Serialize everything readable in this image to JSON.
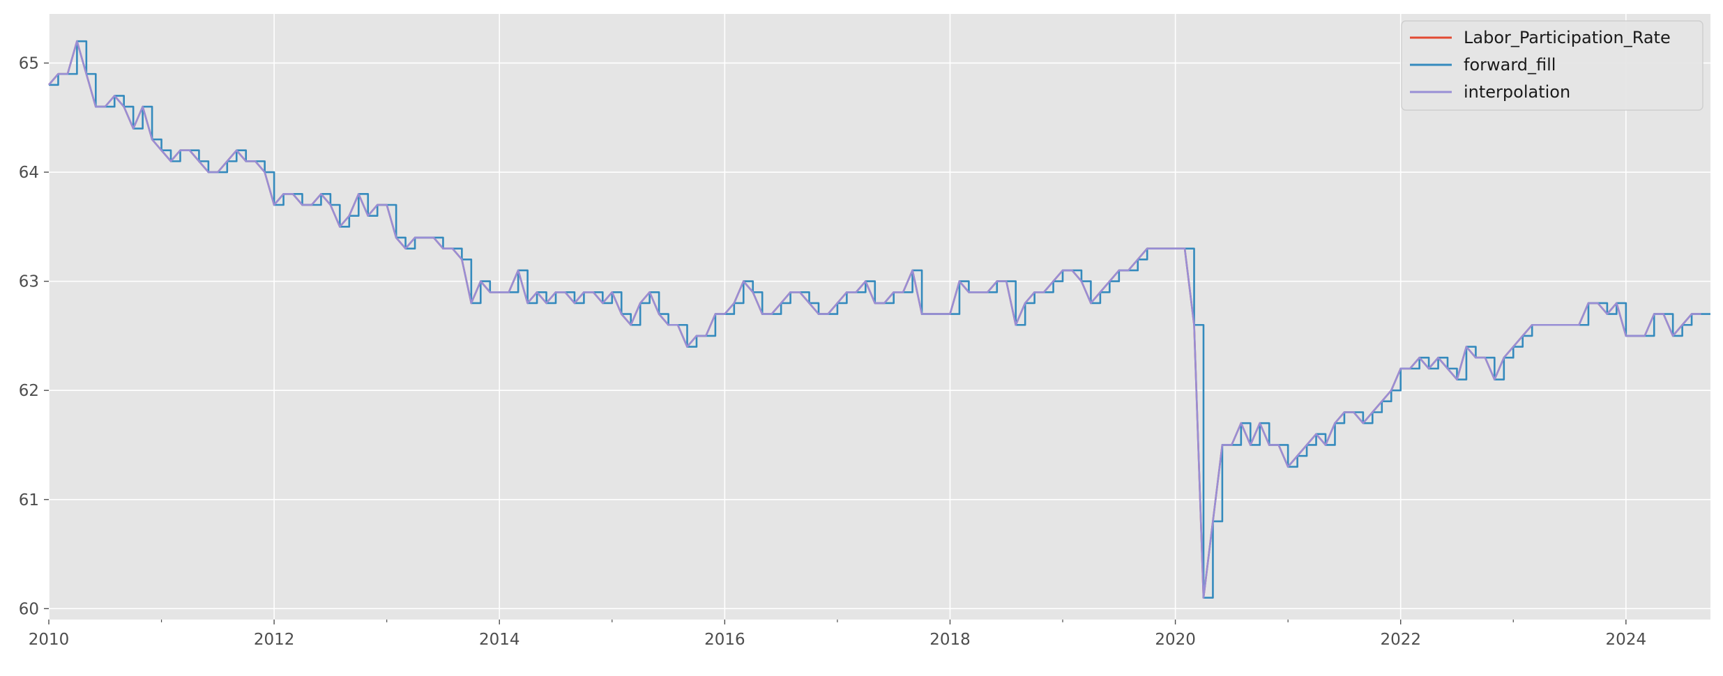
{
  "chart_data": {
    "type": "line",
    "title": "",
    "xlabel": "",
    "ylabel": "",
    "xlim": [
      2010.0,
      2024.75
    ],
    "ylim": [
      59.9,
      65.45
    ],
    "grid": true,
    "legend_position": "top-right",
    "x_major_ticks": [
      2010,
      2012,
      2014,
      2016,
      2018,
      2020,
      2022,
      2024
    ],
    "x_tick_labels": [
      "2010",
      "2012",
      "2014",
      "2016",
      "2018",
      "2020",
      "2022",
      "2024"
    ],
    "x_minor_ticks": [
      2011,
      2013,
      2015,
      2017,
      2019,
      2021,
      2023
    ],
    "y_ticks": [
      60,
      61,
      62,
      63,
      64,
      65
    ],
    "y_tick_labels": [
      "60",
      "61",
      "62",
      "63",
      "64",
      "65"
    ],
    "x_start": "2010-01",
    "x_step": "monthly",
    "values": [
      64.8,
      64.9,
      64.9,
      65.2,
      64.9,
      64.6,
      64.6,
      64.7,
      64.6,
      64.4,
      64.6,
      64.3,
      64.2,
      64.1,
      64.2,
      64.2,
      64.1,
      64.0,
      64.0,
      64.1,
      64.2,
      64.1,
      64.1,
      64.0,
      63.7,
      63.8,
      63.8,
      63.7,
      63.7,
      63.8,
      63.7,
      63.5,
      63.6,
      63.8,
      63.6,
      63.7,
      63.7,
      63.4,
      63.3,
      63.4,
      63.4,
      63.4,
      63.3,
      63.3,
      63.2,
      62.8,
      63.0,
      62.9,
      62.9,
      62.9,
      63.1,
      62.8,
      62.9,
      62.8,
      62.9,
      62.9,
      62.8,
      62.9,
      62.9,
      62.8,
      62.9,
      62.7,
      62.6,
      62.8,
      62.9,
      62.7,
      62.6,
      62.6,
      62.4,
      62.5,
      62.5,
      62.7,
      62.7,
      62.8,
      63.0,
      62.9,
      62.7,
      62.7,
      62.8,
      62.9,
      62.9,
      62.8,
      62.7,
      62.7,
      62.8,
      62.9,
      62.9,
      63.0,
      62.8,
      62.8,
      62.9,
      62.9,
      63.1,
      62.7,
      62.7,
      62.7,
      62.7,
      63.0,
      62.9,
      62.9,
      62.9,
      63.0,
      63.0,
      62.6,
      62.8,
      62.9,
      62.9,
      63.0,
      63.1,
      63.1,
      63.0,
      62.8,
      62.9,
      63.0,
      63.1,
      63.1,
      63.2,
      63.3,
      63.3,
      63.3,
      63.3,
      63.3,
      62.6,
      60.1,
      60.8,
      61.5,
      61.5,
      61.7,
      61.5,
      61.7,
      61.5,
      61.5,
      61.3,
      61.4,
      61.5,
      61.6,
      61.5,
      61.7,
      61.8,
      61.8,
      61.7,
      61.8,
      61.9,
      62.0,
      62.2,
      62.2,
      62.3,
      62.2,
      62.3,
      62.2,
      62.1,
      62.4,
      62.3,
      62.3,
      62.1,
      62.3,
      62.4,
      62.5,
      62.6,
      62.6,
      62.6,
      62.6,
      62.6,
      62.6,
      62.8,
      62.8,
      62.7,
      62.8,
      62.5,
      62.5,
      62.5,
      62.7,
      62.7,
      62.5,
      62.6,
      62.7,
      62.7
    ],
    "series": [
      {
        "name": "Labor_Participation_Rate",
        "color": "#E24A33",
        "draw": "line"
      },
      {
        "name": "forward_fill",
        "color": "#348ABD",
        "draw": "step-post"
      },
      {
        "name": "interpolation",
        "color": "#988ED5",
        "draw": "line"
      }
    ],
    "colors": {
      "plot_background": "#E5E5E5",
      "grid": "#FFFFFF",
      "tick_text": "#4D4D4D",
      "legend_background": "#E5E5E5",
      "legend_border": "#CCCCCC"
    }
  }
}
